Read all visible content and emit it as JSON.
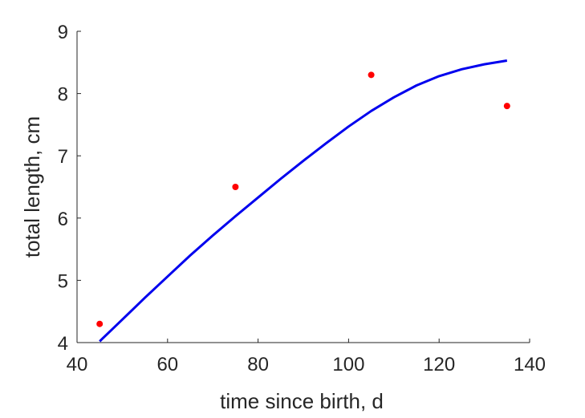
{
  "chart_data": {
    "type": "scatter",
    "xlabel": "time since birth, d",
    "ylabel": "total length, cm",
    "xlim": [
      40,
      140
    ],
    "ylim": [
      4,
      9
    ],
    "grid": false,
    "xticks": [
      40,
      60,
      80,
      100,
      120,
      140
    ],
    "yticks": [
      4,
      5,
      6,
      7,
      8,
      9
    ],
    "series": [
      {
        "type": "scatter",
        "color": "#ff0000",
        "points": [
          {
            "x": 45,
            "y": 4.3
          },
          {
            "x": 75,
            "y": 6.5
          },
          {
            "x": 105,
            "y": 8.3
          },
          {
            "x": 135,
            "y": 7.8
          }
        ]
      },
      {
        "type": "line",
        "color": "#0000ee",
        "points": [
          {
            "x": 45,
            "y": 4.02
          },
          {
            "x": 50,
            "y": 4.37
          },
          {
            "x": 55,
            "y": 4.72
          },
          {
            "x": 60,
            "y": 5.06
          },
          {
            "x": 65,
            "y": 5.4
          },
          {
            "x": 70,
            "y": 5.72
          },
          {
            "x": 75,
            "y": 6.03
          },
          {
            "x": 80,
            "y": 6.33
          },
          {
            "x": 85,
            "y": 6.63
          },
          {
            "x": 90,
            "y": 6.92
          },
          {
            "x": 95,
            "y": 7.2
          },
          {
            "x": 100,
            "y": 7.47
          },
          {
            "x": 105,
            "y": 7.72
          },
          {
            "x": 110,
            "y": 7.94
          },
          {
            "x": 115,
            "y": 8.13
          },
          {
            "x": 120,
            "y": 8.28
          },
          {
            "x": 125,
            "y": 8.39
          },
          {
            "x": 130,
            "y": 8.47
          },
          {
            "x": 135,
            "y": 8.53
          }
        ]
      }
    ]
  }
}
